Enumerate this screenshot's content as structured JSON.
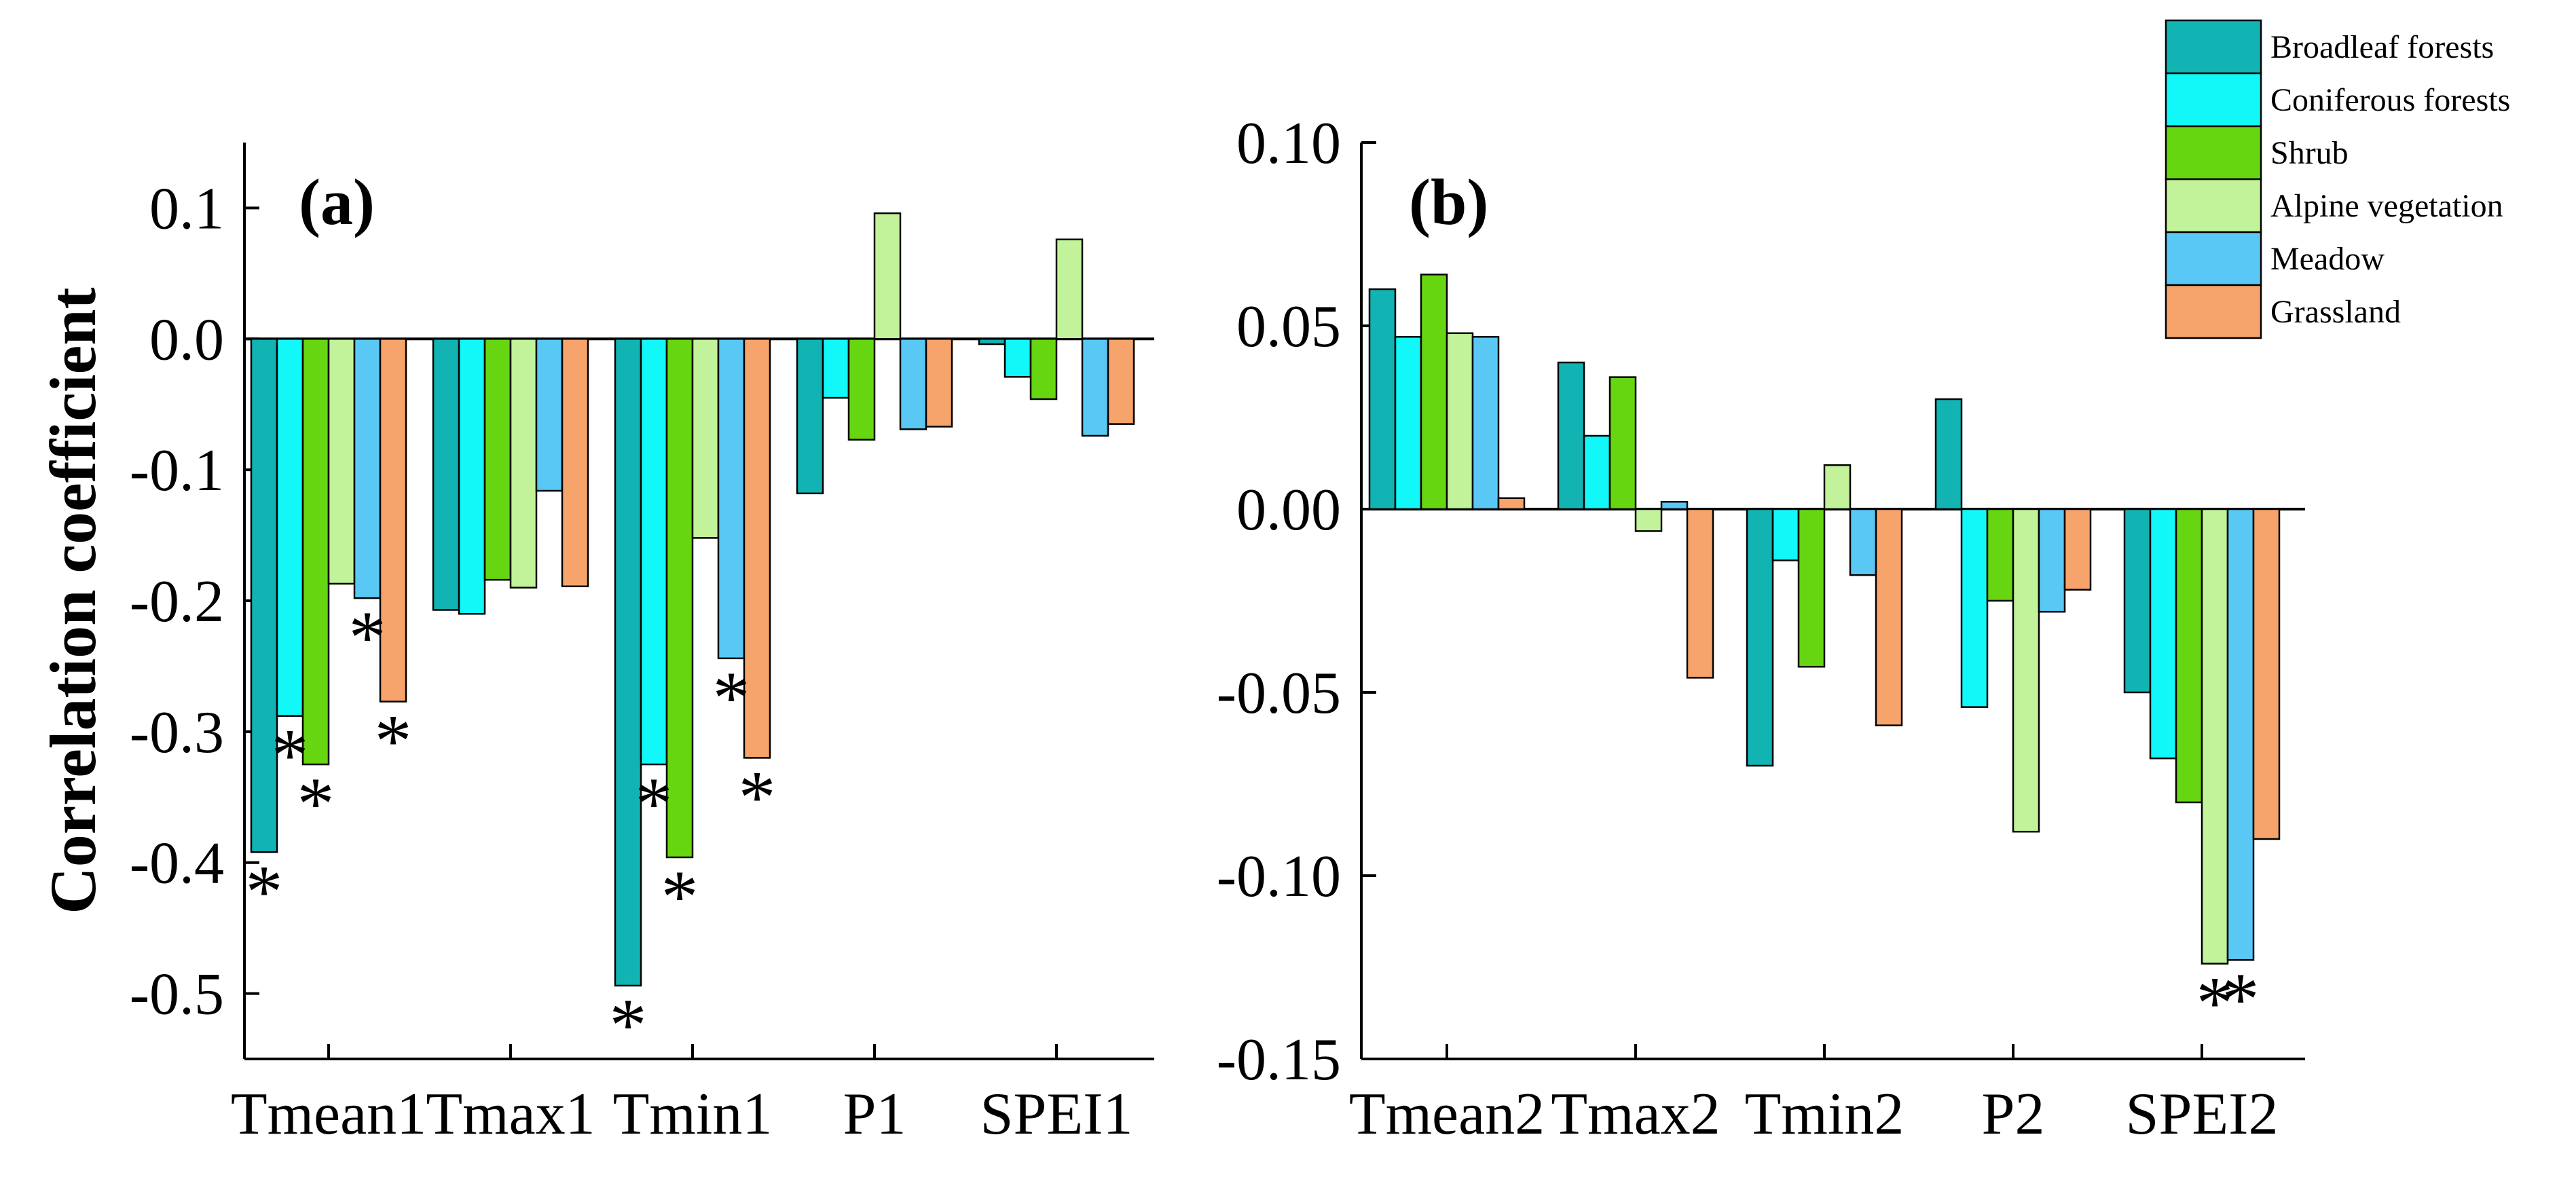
{
  "chart_data": [
    {
      "type": "bar",
      "panel_label": "(a)",
      "ylabel": "Correlation coefficient",
      "categories": [
        "Tmean1",
        "Tmax1",
        "Tmin1",
        "P1",
        "SPEI1"
      ],
      "ylim": [
        -0.55,
        0.15
      ],
      "yticks": [
        0.1,
        0.0,
        -0.1,
        -0.2,
        -0.3,
        -0.4,
        -0.5
      ],
      "ytick_labels": [
        "0.1",
        "0.0",
        "-0.1",
        "-0.2",
        "-0.3",
        "-0.4",
        "-0.5"
      ],
      "series": [
        {
          "name": "Broadleaf forests",
          "values": [
            -0.392,
            -0.207,
            -0.494,
            -0.118,
            -0.004
          ]
        },
        {
          "name": "Coniferous forests",
          "values": [
            -0.288,
            -0.21,
            -0.325,
            -0.045,
            -0.029
          ]
        },
        {
          "name": "Shrub",
          "values": [
            -0.325,
            -0.184,
            -0.396,
            -0.077,
            -0.046
          ]
        },
        {
          "name": "Alpine vegetation",
          "values": [
            -0.187,
            -0.19,
            -0.152,
            0.096,
            0.076
          ]
        },
        {
          "name": "Meadow",
          "values": [
            -0.198,
            -0.116,
            -0.244,
            -0.069,
            -0.074
          ]
        },
        {
          "name": "Grassland",
          "values": [
            -0.277,
            -0.189,
            -0.32,
            -0.067,
            -0.065
          ]
        }
      ],
      "significance_marks": [
        {
          "category": "Tmean1",
          "series": "Broadleaf forests",
          "symbol": "*"
        },
        {
          "category": "Tmean1",
          "series": "Coniferous forests",
          "symbol": "*"
        },
        {
          "category": "Tmean1",
          "series": "Shrub",
          "symbol": "*"
        },
        {
          "category": "Tmean1",
          "series": "Meadow",
          "symbol": "*"
        },
        {
          "category": "Tmean1",
          "series": "Grassland",
          "symbol": "*"
        },
        {
          "category": "Tmin1",
          "series": "Broadleaf forests",
          "symbol": "*"
        },
        {
          "category": "Tmin1",
          "series": "Coniferous forests",
          "symbol": "*"
        },
        {
          "category": "Tmin1",
          "series": "Shrub",
          "symbol": "*"
        },
        {
          "category": "Tmin1",
          "series": "Meadow",
          "symbol": "*"
        },
        {
          "category": "Tmin1",
          "series": "Grassland",
          "symbol": "*"
        }
      ]
    },
    {
      "type": "bar",
      "panel_label": "(b)",
      "ylabel": "",
      "categories": [
        "Tmean2",
        "Tmax2",
        "Tmin2",
        "P2",
        "SPEI2"
      ],
      "ylim": [
        -0.15,
        0.1
      ],
      "yticks": [
        0.1,
        0.05,
        0.0,
        -0.05,
        -0.1,
        -0.15
      ],
      "ytick_labels": [
        "0.10",
        "0.05",
        "0.00",
        "-0.05",
        "-0.10",
        "-0.15"
      ],
      "series": [
        {
          "name": "Broadleaf forests",
          "values": [
            0.06,
            0.04,
            -0.07,
            0.03,
            -0.05
          ]
        },
        {
          "name": "Coniferous forests",
          "values": [
            0.047,
            0.02,
            -0.014,
            -0.054,
            -0.068
          ]
        },
        {
          "name": "Shrub",
          "values": [
            0.064,
            0.036,
            -0.043,
            -0.025,
            -0.08
          ]
        },
        {
          "name": "Alpine vegetation",
          "values": [
            0.048,
            -0.006,
            0.012,
            -0.088,
            -0.124
          ]
        },
        {
          "name": "Meadow",
          "values": [
            0.047,
            0.002,
            -0.018,
            -0.028,
            -0.123
          ]
        },
        {
          "name": "Grassland",
          "values": [
            0.003,
            -0.046,
            -0.059,
            -0.022,
            -0.09
          ]
        }
      ],
      "significance_marks": [
        {
          "category": "SPEI2",
          "series": "Alpine vegetation",
          "symbol": "*"
        },
        {
          "category": "SPEI2",
          "series": "Meadow",
          "symbol": "*"
        }
      ]
    }
  ],
  "legend": {
    "placement": "top-right",
    "items": [
      {
        "label": "Broadleaf forests",
        "color": "#12b3b3"
      },
      {
        "label": "Coniferous forests",
        "color": "#12f7f7"
      },
      {
        "label": "Shrub",
        "color": "#66d611"
      },
      {
        "label": "Alpine vegetation",
        "color": "#c2f299"
      },
      {
        "label": "Meadow",
        "color": "#5ac8f5"
      },
      {
        "label": "Grassland",
        "color": "#f6a46b"
      }
    ]
  }
}
